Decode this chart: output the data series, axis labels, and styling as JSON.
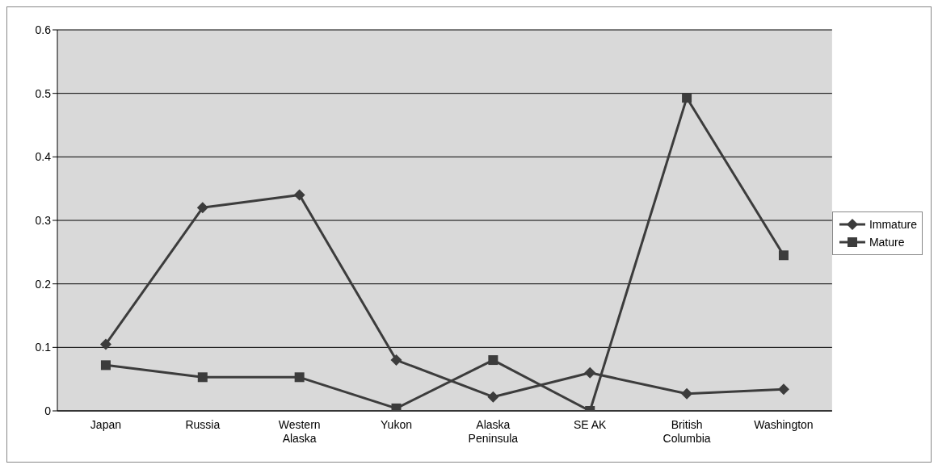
{
  "chart_data": {
    "type": "line",
    "categories": [
      "Japan",
      "Russia",
      "Western Alaska",
      "Yukon",
      "Alaska Peninsula",
      "SE AK",
      "British Columbia",
      "Washington"
    ],
    "series": [
      {
        "name": "Immature",
        "color": "#3c3c3c",
        "marker": "diamond",
        "values": [
          0.105,
          0.32,
          0.34,
          0.08,
          0.022,
          0.06,
          0.027,
          0.034
        ]
      },
      {
        "name": "Mature",
        "color": "#3c3c3c",
        "marker": "square",
        "values": [
          0.072,
          0.053,
          0.053,
          0.004,
          0.08,
          0.0,
          0.493,
          0.245
        ]
      }
    ],
    "ylim": [
      0,
      0.6
    ],
    "yticks": [
      0,
      0.1,
      0.2,
      0.3,
      0.4,
      0.5,
      0.6
    ],
    "grid": "y",
    "legend": "right"
  }
}
